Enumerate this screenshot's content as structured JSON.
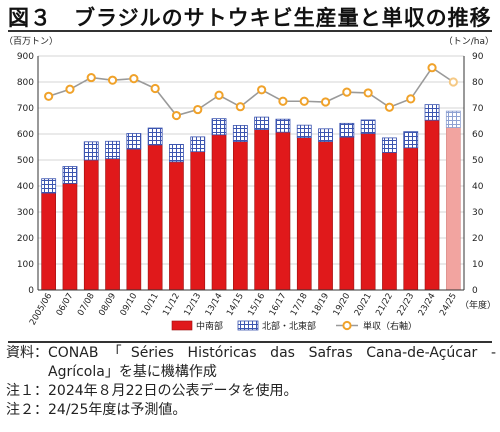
{
  "title": "図３　ブラジルのサトウキビ生産量と単収の推移",
  "chart_data": {
    "type": "bar",
    "left_axis_label": "（百万トン）",
    "right_axis_label": "（トン/ha）",
    "x_axis_suffix": "（年度）",
    "yticks_left": [
      "0",
      "100",
      "200",
      "300",
      "400",
      "500",
      "600",
      "700",
      "800",
      "900"
    ],
    "yticks_right": [
      "0",
      "10",
      "20",
      "30",
      "40",
      "50",
      "60",
      "70",
      "80",
      "90"
    ],
    "ylim_left": [
      0,
      900
    ],
    "ylim_right": [
      0,
      90
    ],
    "grid": true,
    "legend_position": "bottom",
    "categories": [
      "2005/06",
      "06/07",
      "07/08",
      "08/09",
      "09/10",
      "10/11",
      "11/12",
      "12/13",
      "13/14",
      "14/15",
      "15/16",
      "16/17",
      "17/18",
      "18/19",
      "19/20",
      "20/21",
      "21/22",
      "22/23",
      "23/24",
      "24/25"
    ],
    "series": [
      {
        "name": "中南部",
        "type": "bar",
        "stack": "production",
        "axis": "left",
        "color": "#e0191b",
        "values": [
          373,
          410,
          500,
          505,
          542,
          558,
          493,
          532,
          597,
          571,
          617,
          607,
          586,
          571,
          588,
          602,
          529,
          547,
          653,
          625
        ]
      },
      {
        "name": "北部・北東部",
        "type": "bar",
        "stack": "production",
        "axis": "left",
        "color": "#3c55b0",
        "values": [
          55,
          65,
          70,
          67,
          60,
          65,
          67,
          57,
          62,
          62,
          48,
          50,
          48,
          49,
          53,
          52,
          56,
          62,
          60,
          63
        ]
      },
      {
        "name": "単収（右軸）",
        "type": "line",
        "axis": "right",
        "color": "#f0a22a",
        "values": [
          74.5,
          77.2,
          81.7,
          80.7,
          81.3,
          77.5,
          67.1,
          69.4,
          74.9,
          70.5,
          77.0,
          72.6,
          72.6,
          72.3,
          76.1,
          75.8,
          70.3,
          73.5,
          85.5,
          80.0
        ]
      }
    ],
    "forecast_index": 19,
    "forecast_colors": {
      "中南部": "#f2a4a0",
      "北部・北東部": "#8ea1d2"
    }
  },
  "notes": [
    {
      "label": "資料：",
      "text": "CONAB「Séries Históricas das Safras Cana-de-Açúcar - Agrícola」を基に機構作成"
    },
    {
      "label": "注１：",
      "text": "2024年８月22日の公表データを使用。"
    },
    {
      "label": "注２：",
      "text": "24/25年度は予測値。"
    }
  ]
}
